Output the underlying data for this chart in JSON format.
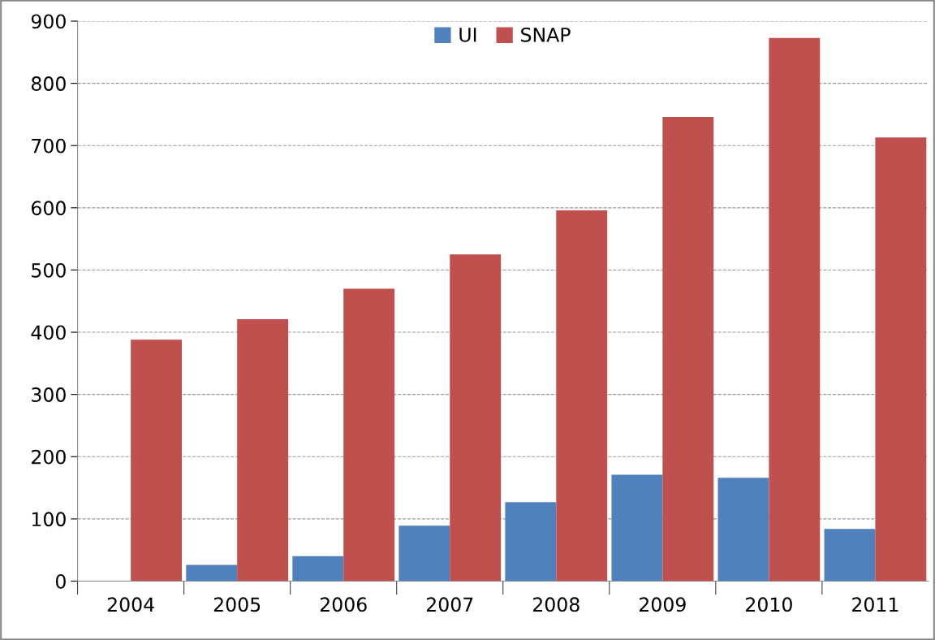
{
  "chart_data": {
    "type": "bar",
    "categories": [
      "2004",
      "2005",
      "2006",
      "2007",
      "2008",
      "2009",
      "2010",
      "2011"
    ],
    "series": [
      {
        "name": "UI",
        "color": "#4f81bd",
        "values": [
          0,
          26,
          40,
          89,
          127,
          171,
          166,
          84
        ]
      },
      {
        "name": "SNAP",
        "color": "#c0504d",
        "values": [
          388,
          421,
          470,
          525,
          596,
          746,
          873,
          713
        ]
      }
    ],
    "ylim": [
      0,
      900
    ],
    "yticks": [
      0,
      100,
      200,
      300,
      400,
      500,
      600,
      700,
      800,
      900
    ],
    "grid": "y",
    "legend": "top"
  }
}
